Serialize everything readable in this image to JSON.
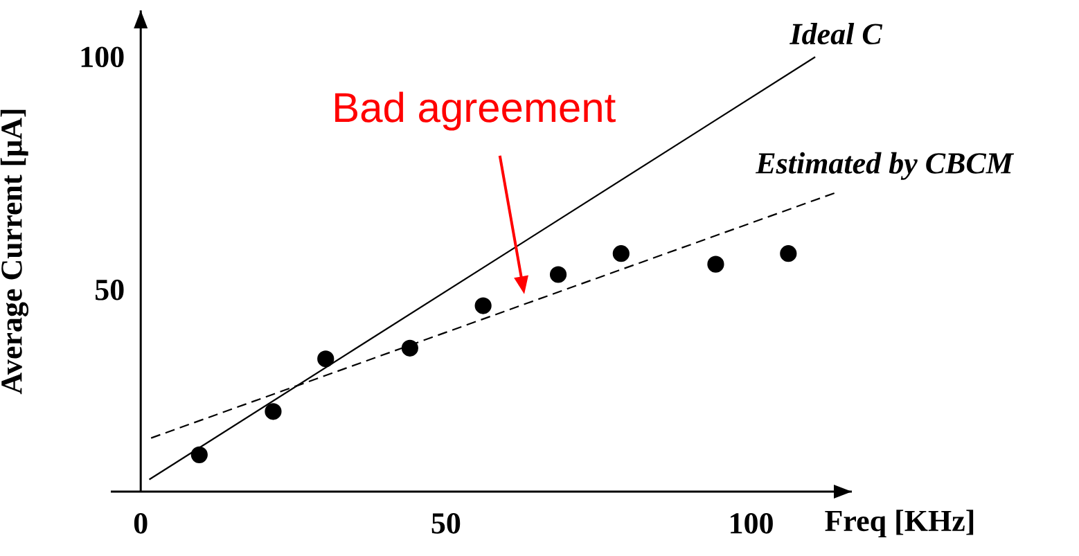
{
  "chart_data": {
    "type": "line",
    "xlabel": "Freq [KHz]",
    "ylabel": "Average Current [μA]",
    "xlim": [
      -4.9,
      116.5
    ],
    "ylim": [
      6.7,
      110
    ],
    "xticks": [
      0,
      50,
      100
    ],
    "yticks": [
      50,
      100
    ],
    "grid": false,
    "legend": false,
    "series": [
      {
        "name": "*Ideal* C",
        "color": "#000000",
        "line_style": "solid",
        "marker": "none",
        "x": [
          1.4,
          110.5
        ],
        "values": [
          9.3,
          100
        ]
      },
      {
        "name": "*Estimated by CBCM*",
        "color": "#000000",
        "line_style": "dashed",
        "marker": "none",
        "x": [
          1.7,
          113.9
        ],
        "values": [
          18.2,
          70.9
        ]
      },
      {
        "type": "scatter",
        "color": "#000000",
        "marker": "circle",
        "x": [
          9.6,
          21.7,
          30.3,
          44.1,
          56.1,
          68.4,
          78.7,
          94.2,
          106.1
        ],
        "values": [
          14.6,
          23.9,
          35.2,
          37.5,
          46.6,
          53.3,
          57.8,
          55.5,
          57.8
        ]
      }
    ],
    "annotations": [
      "Bad agreement"
    ]
  }
}
